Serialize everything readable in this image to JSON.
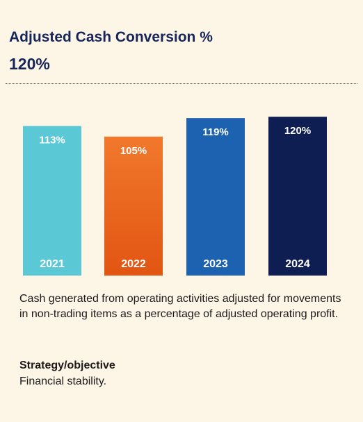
{
  "header": {
    "title": "Adjusted Cash Conversion %",
    "headline_value": "120%"
  },
  "chart_data": {
    "type": "bar",
    "categories": [
      "2021",
      "2022",
      "2023",
      "2024"
    ],
    "values": [
      113,
      105,
      119,
      120
    ],
    "value_labels": [
      "113%",
      "105%",
      "119%",
      "120%"
    ],
    "bar_colors": [
      "#5bc8d6",
      "#ee6b22",
      "#1d62b0",
      "#0e1d52"
    ],
    "ylim": [
      0,
      120
    ],
    "grid": false,
    "legend": "none"
  },
  "description": "Cash generated from operating activities adjusted for movements in non-trading items as a percentage of adjusted operating profit.",
  "strategy": {
    "heading": "Strategy/objective",
    "text": "Financial stability."
  }
}
